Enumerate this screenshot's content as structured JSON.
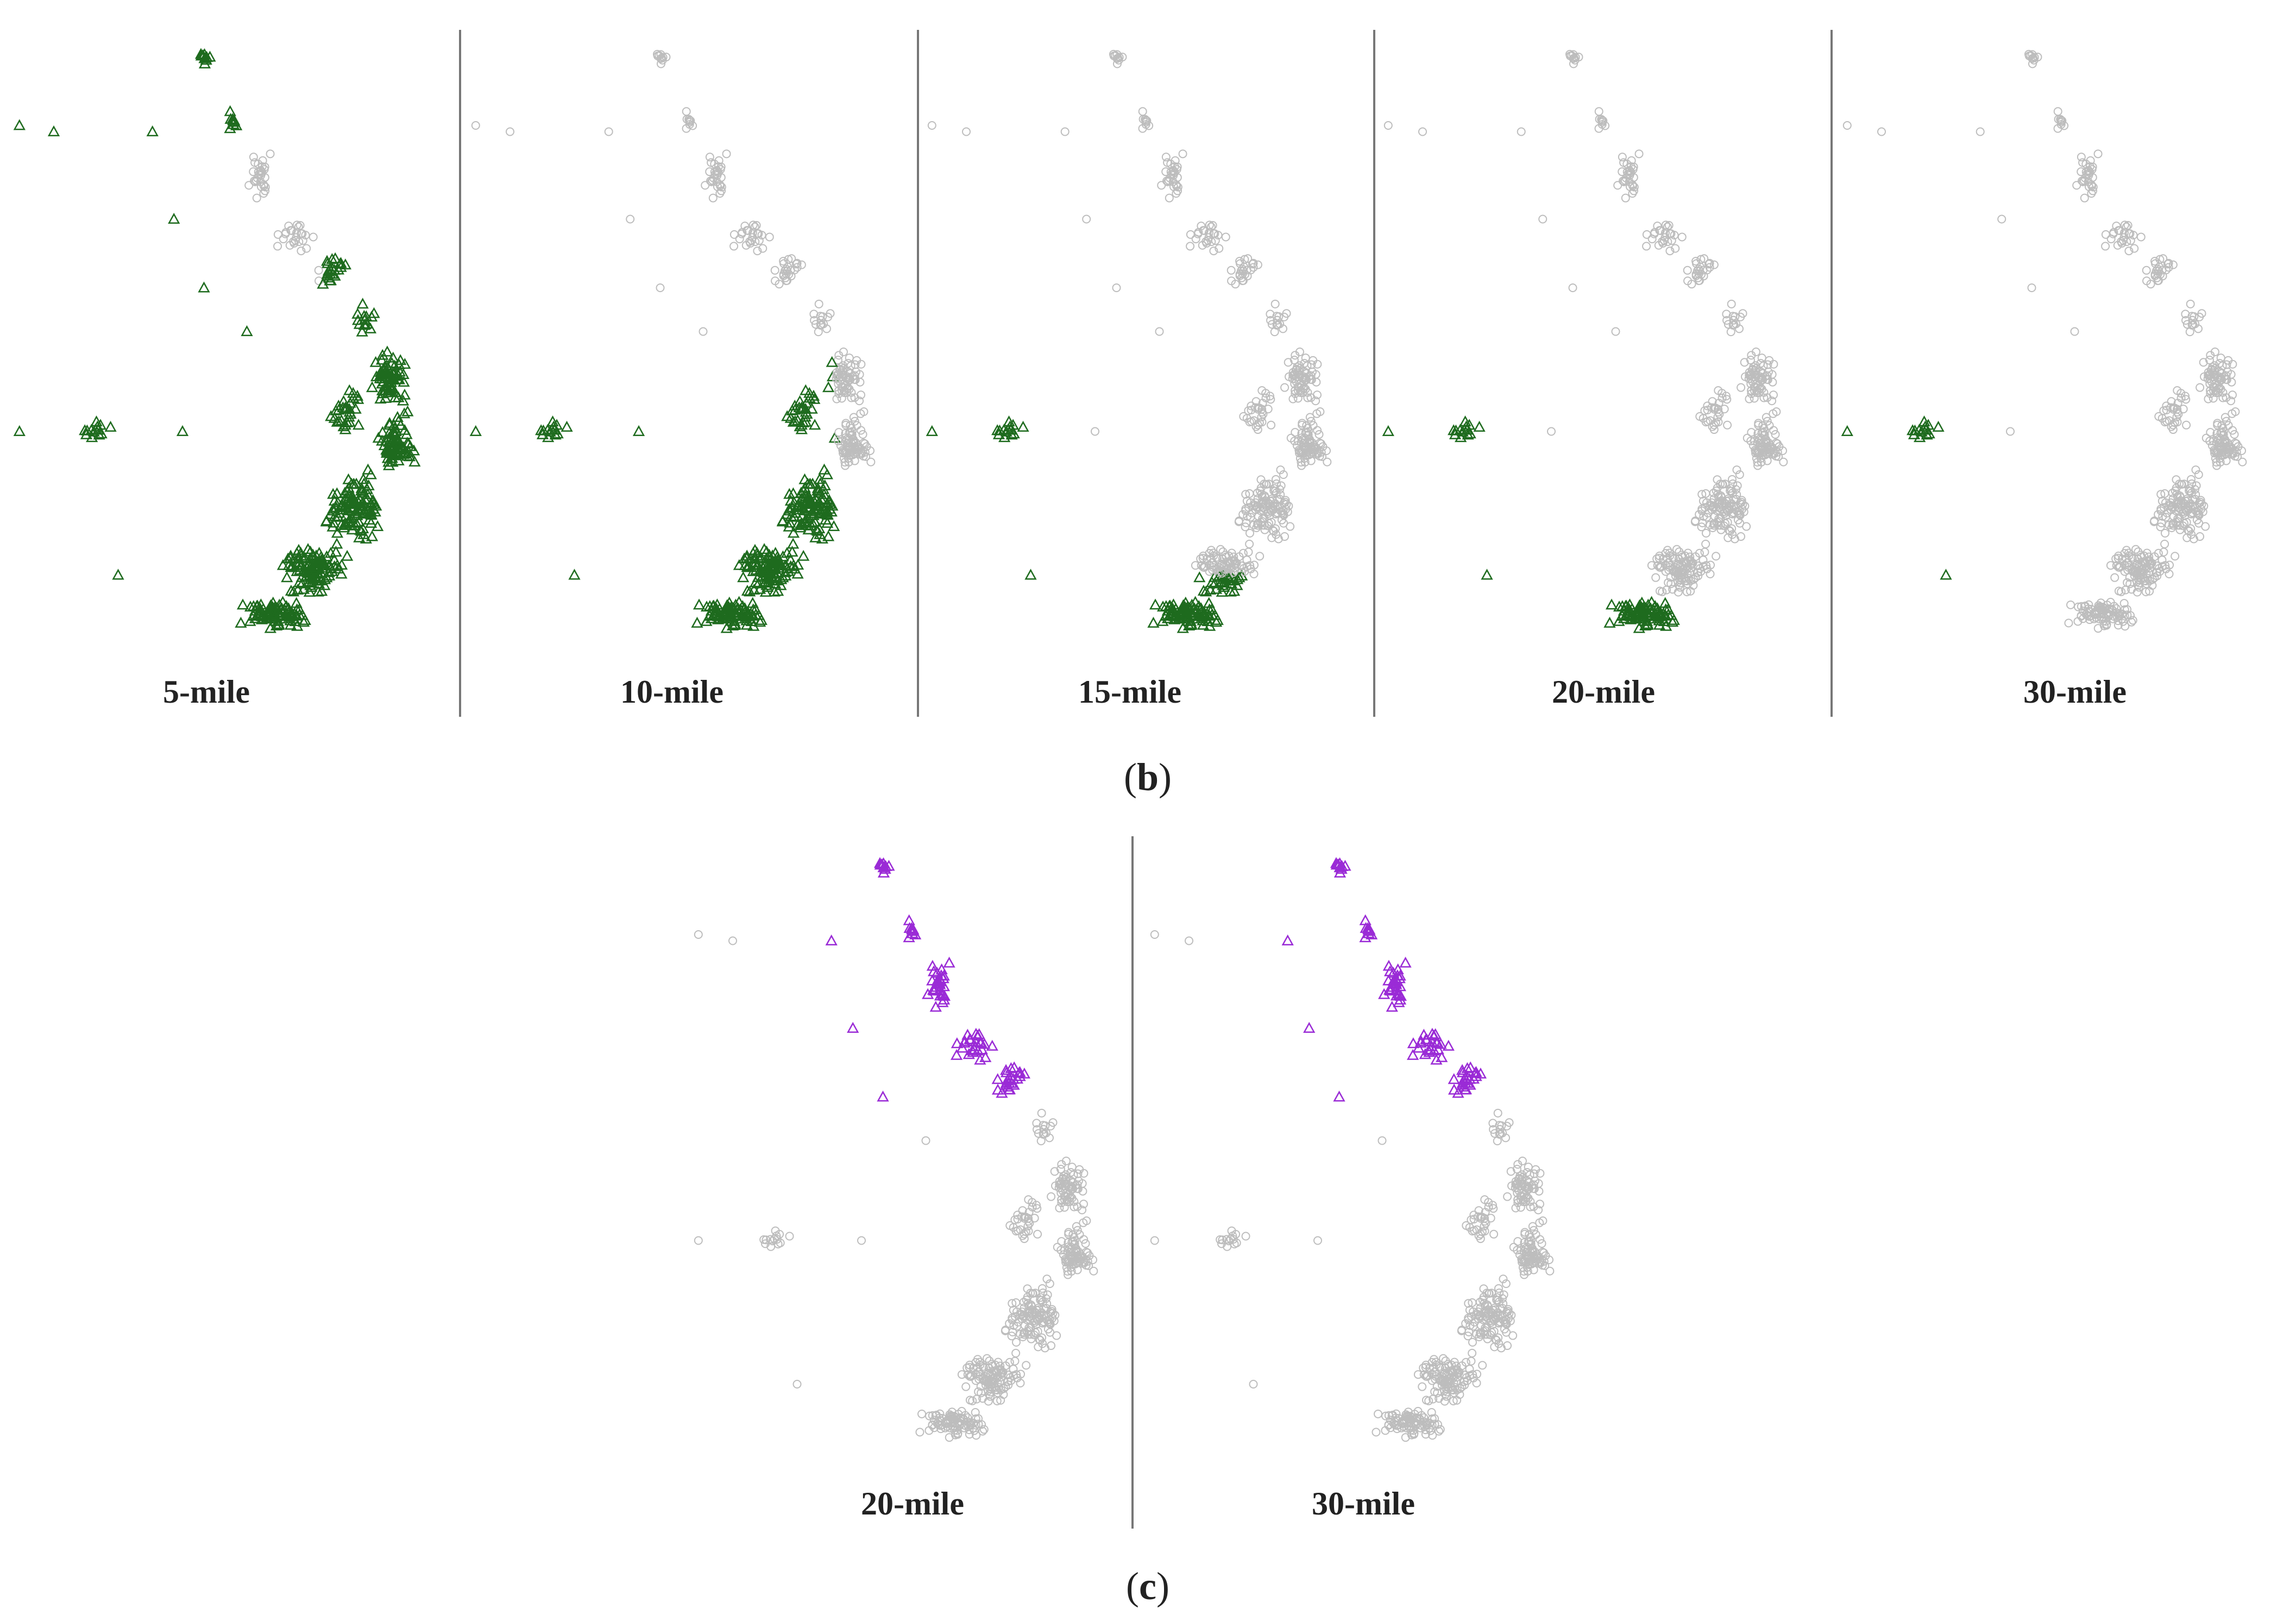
{
  "figure": {
    "row_b": {
      "caption_letter": "b",
      "panels": [
        {
          "label": "5-mile",
          "coverage": "most"
        },
        {
          "label": "10-mile",
          "coverage": "south"
        },
        {
          "label": "15-mile",
          "coverage": "southern-strip"
        },
        {
          "label": "20-mile",
          "coverage": "bottom-strip"
        },
        {
          "label": "30-mile",
          "coverage": "none"
        }
      ]
    },
    "row_c": {
      "caption_letter": "c",
      "panels": [
        {
          "label": "20-mile",
          "coverage": "north"
        },
        {
          "label": "30-mile",
          "coverage": "north"
        }
      ]
    }
  },
  "markers": {
    "unselected": {
      "shape": "circle",
      "color": "#bdbdbd"
    },
    "selected_b": {
      "shape": "triangle",
      "color": "#1e6b1e"
    },
    "selected_c": {
      "shape": "triangle",
      "color": "#9a2bd6"
    }
  }
}
